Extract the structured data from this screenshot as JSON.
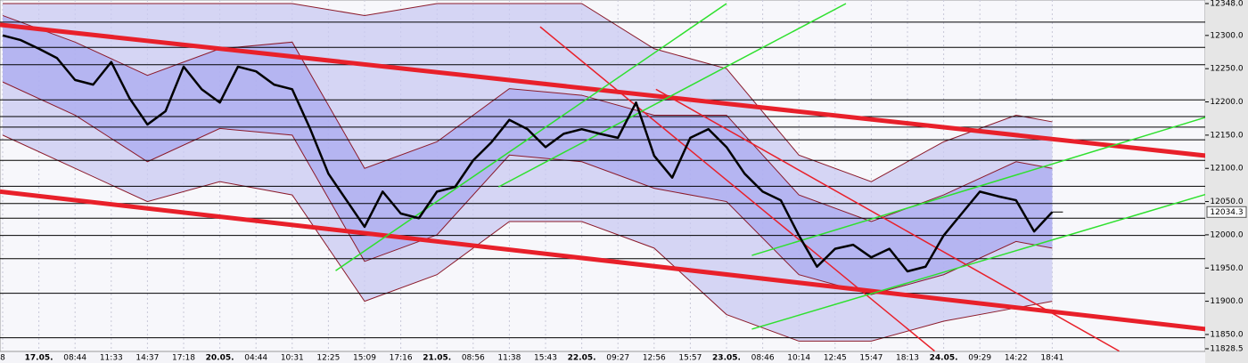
{
  "chart_data": {
    "type": "line",
    "categories": [
      "8",
      null,
      "17.05.",
      null,
      "08:44",
      null,
      "11:33",
      null,
      "14:37",
      null,
      "17:18",
      null,
      "20.05.",
      null,
      "04:44",
      null,
      "10:31",
      null,
      "12:25",
      null,
      "15:09",
      null,
      "17:16",
      null,
      "21.05.",
      null,
      "08:56",
      null,
      "11:38",
      null,
      "15:43",
      null,
      "22.05.",
      null,
      "09:27",
      null,
      "12:56",
      null,
      "15:57",
      null,
      "23.05.",
      null,
      "08:46",
      null,
      "10:14",
      null,
      "12:45",
      null,
      "15:47",
      null,
      "18:13",
      null,
      "24.05.",
      null,
      "09:29",
      null,
      "14:22",
      null,
      "18:41"
    ],
    "series": [
      {
        "color": "#000000",
        "values": [
          12300,
          12293,
          12280,
          12266,
          12233,
          12226,
          12260,
          12206,
          12166,
          12186,
          12253,
          12219,
          12199,
          12253,
          12246,
          12226,
          12219,
          12159,
          12092,
          12052,
          12012,
          12065,
          12032,
          12025,
          12065,
          12072,
          12112,
          12139,
          12173,
          12159,
          12132,
          12152,
          12159,
          12152,
          12146,
          12199,
          12119,
          12086,
          12146,
          12159,
          12132,
          12092,
          12065,
          12052,
          11999,
          11952,
          11979,
          11985,
          11966,
          11979,
          11945,
          11952,
          11999,
          12032,
          12065,
          12058,
          12052,
          12005,
          12034.3
        ]
      }
    ],
    "bands": [
      {
        "color": "#c9c9f2",
        "x": [
          0,
          4,
          8,
          12,
          16,
          20,
          24,
          28,
          32,
          36,
          40,
          44,
          48,
          52,
          56,
          58
        ],
        "upper": [
          12348,
          12348,
          12348,
          12348,
          12348,
          12330,
          12348,
          12348,
          12348,
          12280,
          12250,
          12120,
          12080,
          12140,
          12180,
          12170
        ],
        "lower": [
          12150,
          12100,
          12050,
          12080,
          12060,
          11900,
          11940,
          12020,
          12020,
          11980,
          11880,
          11840,
          11840,
          11870,
          11890,
          11900
        ]
      },
      {
        "color": "#a9a9f0",
        "x": [
          0,
          4,
          8,
          12,
          16,
          20,
          24,
          28,
          32,
          36,
          40,
          44,
          48,
          52,
          56,
          58
        ],
        "upper": [
          12330,
          12290,
          12240,
          12280,
          12290,
          12100,
          12140,
          12220,
          12210,
          12180,
          12180,
          12060,
          12020,
          12060,
          12110,
          12100
        ],
        "lower": [
          12230,
          12180,
          12110,
          12160,
          12150,
          11960,
          12000,
          12120,
          12110,
          12070,
          12050,
          11940,
          11910,
          11940,
          11990,
          11980
        ]
      }
    ],
    "levels": [
      12320,
      12282,
      12256,
      12203,
      12178,
      12162,
      12143,
      12112,
      12073,
      12047,
      12025,
      11999,
      11964,
      11912,
      11845
    ],
    "trend_lines": [
      {
        "color": "#e8202a",
        "width": 5,
        "x": [
          -0.15,
          66.5
        ],
        "values": [
          12316,
          12119
        ]
      },
      {
        "color": "#e8202a",
        "width": 5,
        "x": [
          -0.15,
          66.5
        ],
        "values": [
          12065,
          11858
        ]
      },
      {
        "color": "#e8202a",
        "width": 1.5,
        "x": [
          29.7,
          51.5
        ],
        "values": [
          12313,
          11825
        ]
      },
      {
        "color": "#e8202a",
        "width": 1.5,
        "x": [
          36.1,
          61.7
        ],
        "values": [
          12219,
          11825
        ]
      },
      {
        "color": "#2ee02e",
        "width": 1.5,
        "x": [
          18.4,
          40.0
        ],
        "values": [
          11946,
          12348
        ]
      },
      {
        "color": "#2ee02e",
        "width": 1.5,
        "x": [
          27.4,
          46.6
        ],
        "values": [
          12072,
          12348
        ]
      },
      {
        "color": "#2ee02e",
        "width": 1.5,
        "x": [
          41.4,
          66.5
        ],
        "values": [
          11969,
          12177
        ]
      },
      {
        "color": "#2ee02e",
        "width": 1.5,
        "x": [
          41.4,
          66.5
        ],
        "values": [
          11858,
          12061
        ]
      }
    ],
    "ylim": [
      11828.5,
      12348.0
    ],
    "yticks": [
      {
        "value": 12348,
        "label": "12348.0"
      },
      {
        "value": 12300,
        "label": "12300.0"
      },
      {
        "value": 12250,
        "label": "12250.0"
      },
      {
        "value": 12200,
        "label": "12200.0"
      },
      {
        "value": 12150,
        "label": "12150.0"
      },
      {
        "value": 12100,
        "label": "12100.0"
      },
      {
        "value": 12050,
        "label": "12050.0"
      },
      {
        "value": 12000,
        "label": "12000.0"
      },
      {
        "value": 11950,
        "label": "11950.0"
      },
      {
        "value": 11900,
        "label": "11900.0"
      },
      {
        "value": 11850,
        "label": "11850.0"
      },
      {
        "value": 11828.5,
        "label": "11828.5"
      }
    ]
  }
}
